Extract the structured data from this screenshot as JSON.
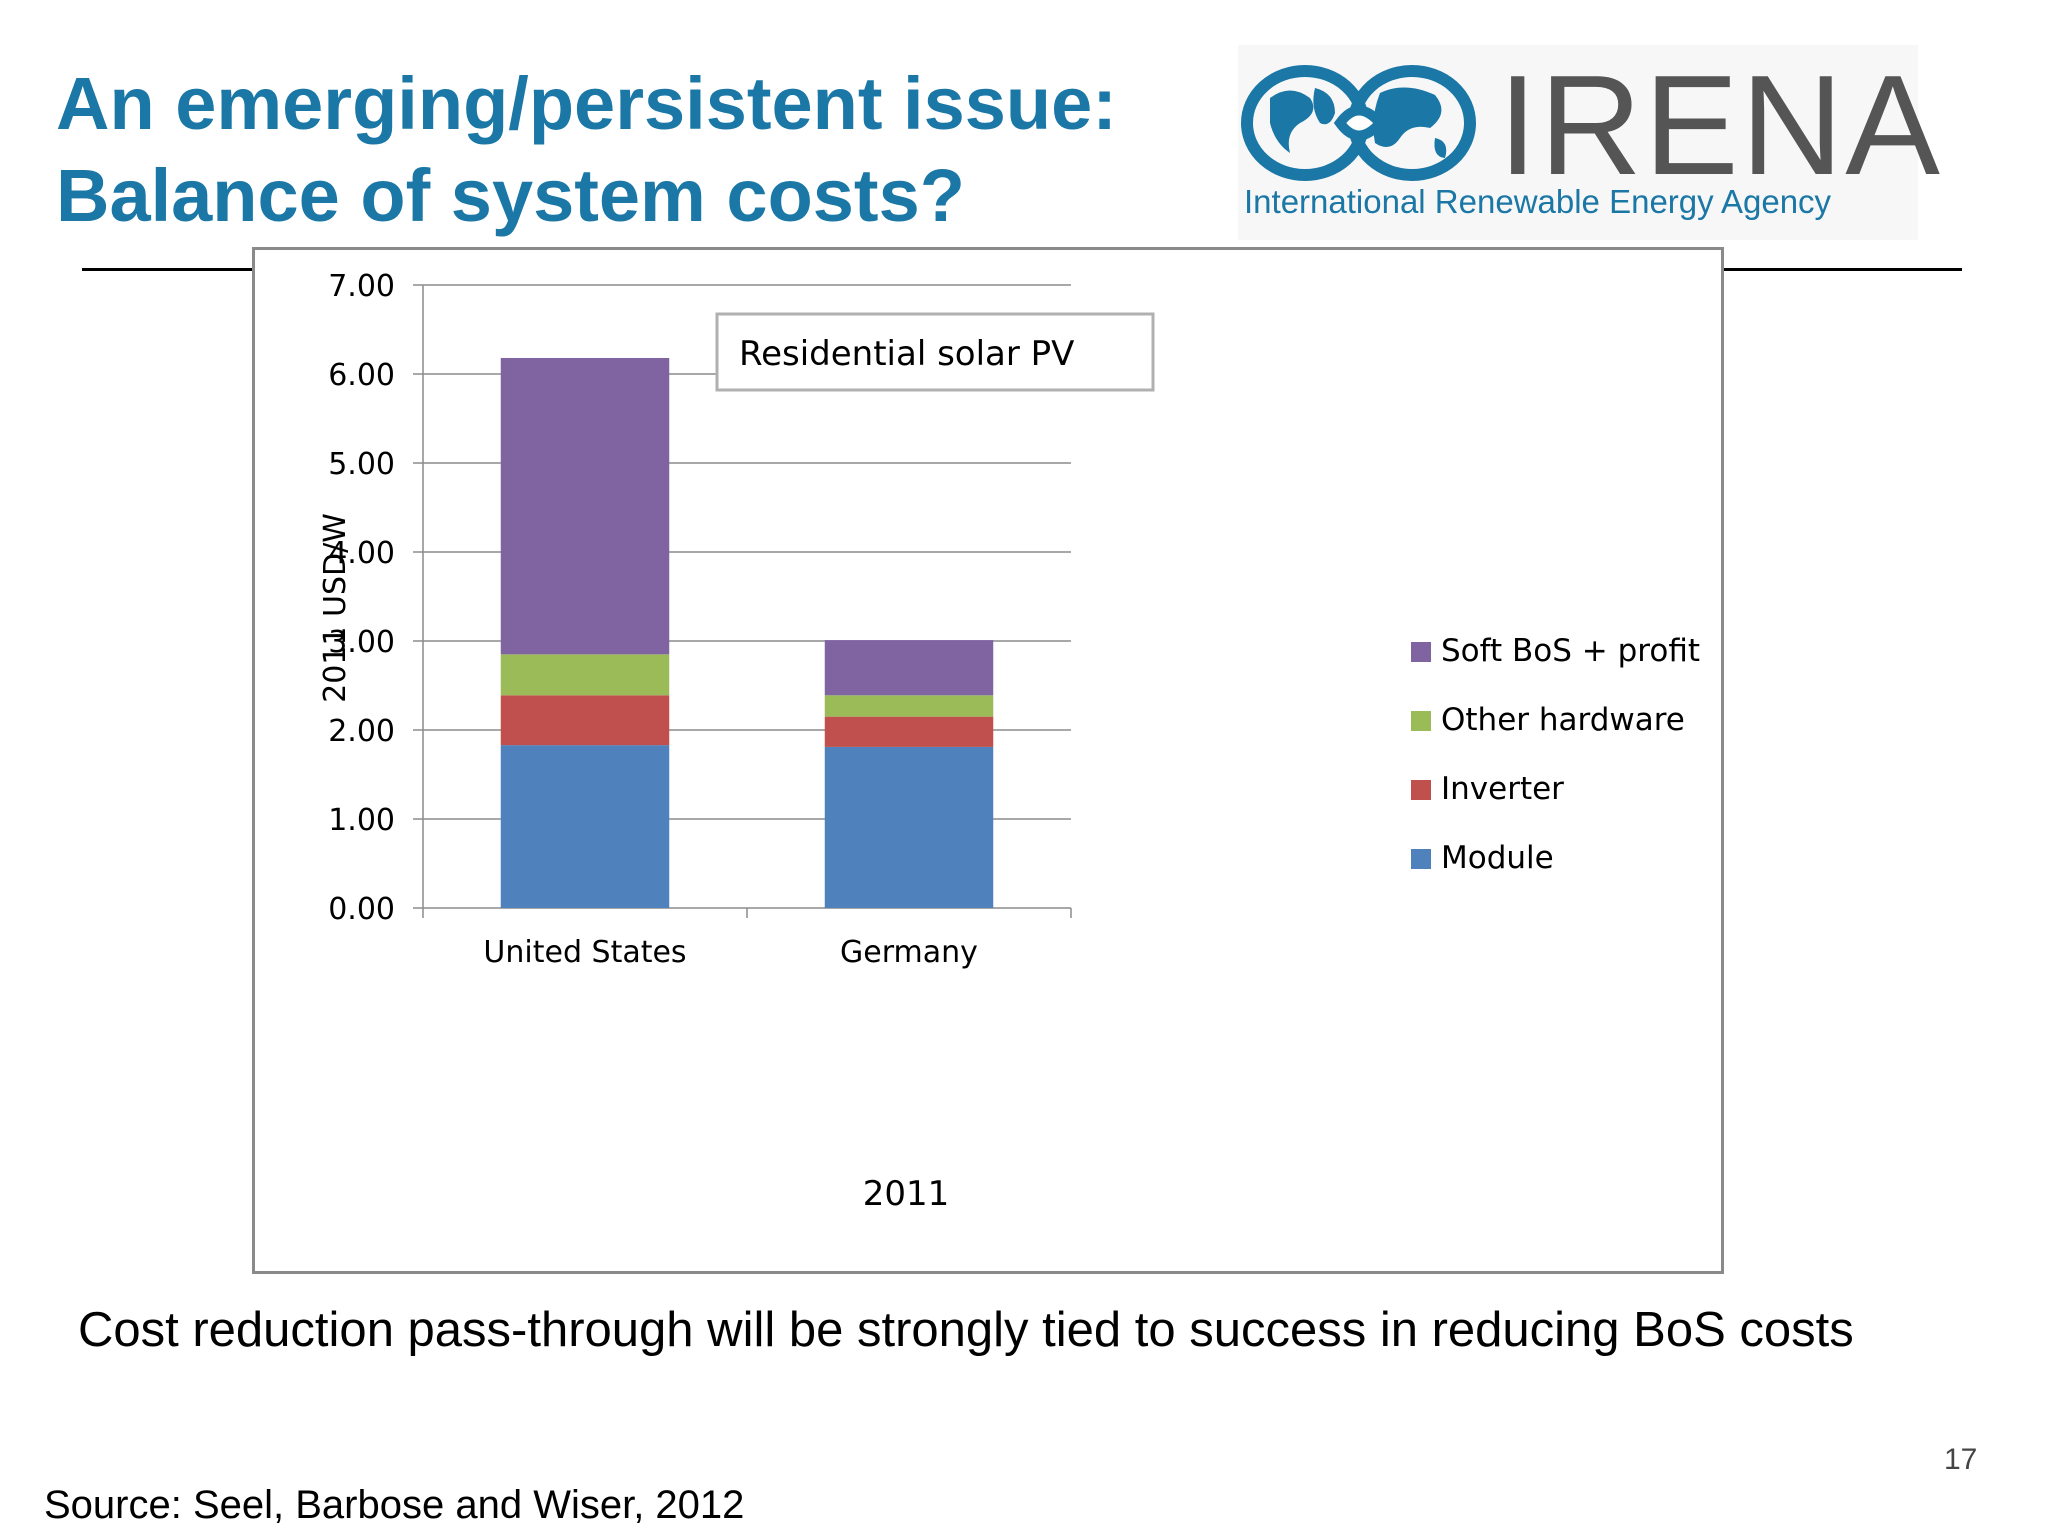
{
  "slide": {
    "title_line1": "An emerging/persistent issue:",
    "title_line2": "Balance of system costs?",
    "caption": "Cost reduction pass-through will be strongly tied to success in reducing BoS costs",
    "source": "Source: Seel, Barbose and Wiser, 2012",
    "page_number": "17"
  },
  "logo": {
    "name": "IRENA",
    "subtitle": "International Renewable Energy Agency",
    "icon": "globe-infinity-icon",
    "color": "#1a77a6"
  },
  "chart_data": {
    "type": "bar",
    "stacked": true,
    "title": "Residential solar PV",
    "xlabel": "2011",
    "ylabel": "2011 USD/W",
    "categories": [
      "United States",
      "Germany"
    ],
    "ylim": [
      0,
      7
    ],
    "yticks": [
      "0.00",
      "1.00",
      "2.00",
      "3.00",
      "4.00",
      "5.00",
      "6.00",
      "7.00"
    ],
    "grid": true,
    "legend_position": "right",
    "series": [
      {
        "name": "Module",
        "color": "#4f81bd",
        "values": [
          1.83,
          1.81
        ]
      },
      {
        "name": "Inverter",
        "color": "#c0504d",
        "values": [
          0.56,
          0.34
        ]
      },
      {
        "name": "Other hardware",
        "color": "#9bbb59",
        "values": [
          0.46,
          0.24
        ]
      },
      {
        "name": "Soft BoS + profit",
        "color": "#8064a2",
        "values": [
          3.33,
          0.62
        ]
      }
    ]
  }
}
